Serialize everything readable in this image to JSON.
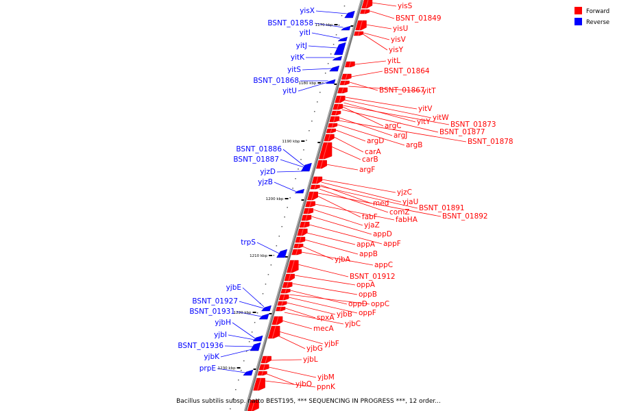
{
  "caption": "Bacillus subtilis subsp. natto BEST195, *** SEQUENCING IN PROGRESS ***, 12 order...",
  "legend": [
    {
      "label": "Forward",
      "color": "#ff0000"
    },
    {
      "label": "Reverse",
      "color": "#0000ff"
    }
  ],
  "ticks": [
    "1170 kbp",
    "1180 kbp",
    "1190 kbp",
    "1200 kbp",
    "1210 kbp",
    "1220 kbp",
    "1230 kbp"
  ],
  "forward_genes": [
    "yisS",
    "BSNT_01849",
    "yisU",
    "yisV",
    "yisY",
    "yitL",
    "BSNT_01864",
    "BSNT_01867",
    "yitT",
    "yitV",
    "yitW",
    "yitY",
    "BSNT_01873",
    "argC",
    "BSNT_01877",
    "argJ",
    "BSNT_01878",
    "argB",
    "argD",
    "carA",
    "carB",
    "argF",
    "yjzC",
    "yjaU",
    "med",
    "BSNT_01891",
    "comZ",
    "fabF",
    "BSNT_01892",
    "fabHA",
    "yjaZ",
    "appD",
    "appF",
    "appA",
    "appB",
    "yjbA",
    "appC",
    "BSNT_01912",
    "oppA",
    "oppB",
    "oppD",
    "oppC",
    "oppF",
    "yjbB",
    "spxA",
    "yjbC",
    "mecA",
    "yjbF",
    "yjbG",
    "yjbL",
    "yjbM",
    "yjbO",
    "ppnK"
  ],
  "reverse_genes": [
    "yisX",
    "BSNT_01858",
    "yitI",
    "yitJ",
    "yitK",
    "yitS",
    "BSNT_01868",
    "yitU",
    "BSNT_01886",
    "BSNT_01887",
    "yjzD",
    "yjzB",
    "trpS",
    "yjbE",
    "BSNT_01927",
    "BSNT_01931",
    "yjbH",
    "yjbI",
    "BSNT_01936",
    "yjbK",
    "prpE"
  ]
}
